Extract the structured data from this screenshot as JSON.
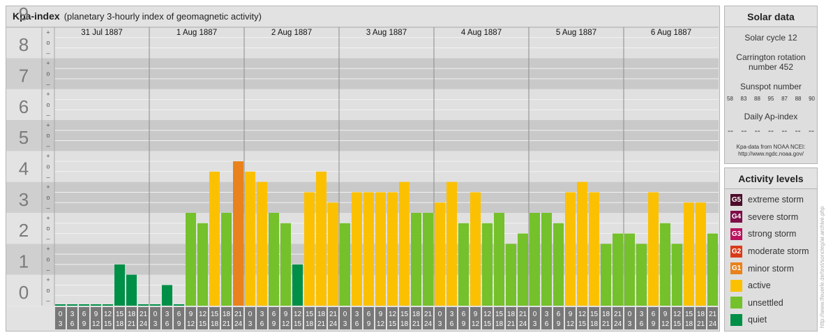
{
  "header": {
    "title": "Kpa-index",
    "subtitle": "(planetary 3-hourly index of geomagnetic activity)"
  },
  "chart_data": {
    "type": "bar",
    "title": "Kpa-index",
    "subtitle": "(planetary 3-hourly index of geomagnetic activity)",
    "ylim": [
      0,
      9
    ],
    "y_ticks": [
      "0",
      "1",
      "2",
      "3",
      "4",
      "5",
      "6",
      "7",
      "8",
      "9"
    ],
    "thirds_labels": [
      "–",
      "o",
      "+"
    ],
    "days": [
      "31 Jul 1887",
      "1 Aug 1887",
      "2 Aug 1887",
      "3 Aug 1887",
      "4 Aug 1887",
      "5 Aug 1887",
      "6 Aug 1887"
    ],
    "interval_start": [
      "0",
      "3",
      "6",
      "9",
      "12",
      "15",
      "18",
      "21"
    ],
    "interval_end": [
      "3",
      "6",
      "9",
      "12",
      "15",
      "18",
      "21",
      "24"
    ],
    "values": [
      0,
      0,
      0,
      0,
      0,
      1.333,
      1,
      0,
      0,
      0.667,
      0,
      3,
      2.667,
      4.333,
      3,
      4.667,
      4.333,
      4,
      3,
      2.667,
      1.333,
      3.667,
      4.333,
      3.333,
      2.667,
      3.667,
      3.667,
      3.667,
      3.667,
      4,
      3,
      3,
      3.333,
      4,
      2.667,
      3.667,
      2.667,
      3,
      2,
      2.333,
      3,
      3,
      2.667,
      3.667,
      4,
      3.667,
      2,
      2.333,
      2.333,
      2,
      3.667,
      2.667,
      2,
      3.333,
      3.333,
      2.333
    ]
  },
  "solar_data": {
    "heading": "Solar data",
    "solar_cycle": "Solar cycle 12",
    "carrington_line1": "Carrington rotation",
    "carrington_line2": "number 452",
    "sunspot_heading": "Sunspot number",
    "sunspot_numbers": [
      "58",
      "83",
      "88",
      "95",
      "87",
      "88",
      "90"
    ],
    "ap_heading": "Daily Ap-index",
    "ap_values": [
      "--",
      "--",
      "--",
      "--",
      "--",
      "--",
      "--"
    ],
    "credit_line1": "Kpa-data from NOAA NCEI:",
    "credit_line2": "http://www.ngdc.noaa.gov/"
  },
  "activity_levels": {
    "heading": "Activity levels",
    "items": [
      {
        "code": "G5",
        "label": "extreme storm",
        "color": "#4d0d2a"
      },
      {
        "code": "G4",
        "label": "severe storm",
        "color": "#7c0e48"
      },
      {
        "code": "G3",
        "label": "strong storm",
        "color": "#b8135c"
      },
      {
        "code": "G2",
        "label": "moderate storm",
        "color": "#d93b1a"
      },
      {
        "code": "G1",
        "label": "minor storm",
        "color": "#e9821c"
      },
      {
        "code": "",
        "label": "active",
        "color": "#fbc100"
      },
      {
        "code": "",
        "label": "unsettled",
        "color": "#74c12b"
      },
      {
        "code": "",
        "label": "quiet",
        "color": "#008f47"
      }
    ]
  },
  "watermark": "http://www.tfeuerle.de/text/soncleg/ar.archive.php"
}
